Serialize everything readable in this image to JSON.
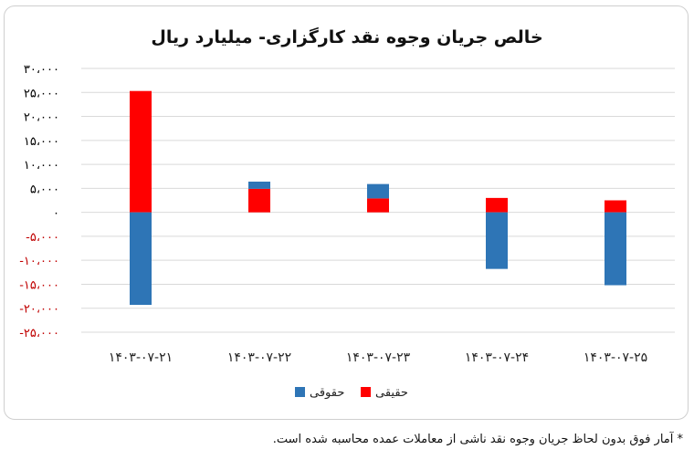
{
  "chart_data": {
    "type": "bar",
    "stacked": true,
    "title": "خالص جریان وجوه نقد کارگزاری- میلیارد ریال",
    "categories": [
      "۱۴۰۳-۰۷-۲۱",
      "۱۴۰۳-۰۷-۲۲",
      "۱۴۰۳-۰۷-۲۳",
      "۱۴۰۳-۰۷-۲۴",
      "۱۴۰۳-۰۷-۲۵"
    ],
    "series": [
      {
        "name": "حقیقی",
        "color": "#ff0000",
        "values": [
          25300,
          4900,
          2900,
          3000,
          2500
        ]
      },
      {
        "name": "حقوقی",
        "color": "#2e75b6",
        "values": [
          -19300,
          1500,
          3000,
          -11800,
          -15200
        ]
      }
    ],
    "ylim": [
      -25000,
      30000
    ],
    "yticks": [
      {
        "value": 30000,
        "label": "۳۰،۰۰۰"
      },
      {
        "value": 25000,
        "label": "۲۵،۰۰۰"
      },
      {
        "value": 20000,
        "label": "۲۰،۰۰۰"
      },
      {
        "value": 15000,
        "label": "۱۵،۰۰۰"
      },
      {
        "value": 10000,
        "label": "۱۰،۰۰۰"
      },
      {
        "value": 5000,
        "label": "۵،۰۰۰"
      },
      {
        "value": 0,
        "label": "۰"
      },
      {
        "value": -5000,
        "label": "-۵،۰۰۰"
      },
      {
        "value": -10000,
        "label": "-۱۰،۰۰۰"
      },
      {
        "value": -15000,
        "label": "-۱۵،۰۰۰"
      },
      {
        "value": -20000,
        "label": "-۲۰،۰۰۰"
      },
      {
        "value": -25000,
        "label": "-۲۵،۰۰۰"
      }
    ],
    "negative_tick_color": "#c00000",
    "positive_tick_color": "#000000",
    "grid": true,
    "legend_position": "bottom",
    "xlabel": "",
    "ylabel": ""
  },
  "footnote": "* آمار فوق بدون لحاظ جریان وجوه نقد ناشی از معاملات عمده محاسبه شده است."
}
